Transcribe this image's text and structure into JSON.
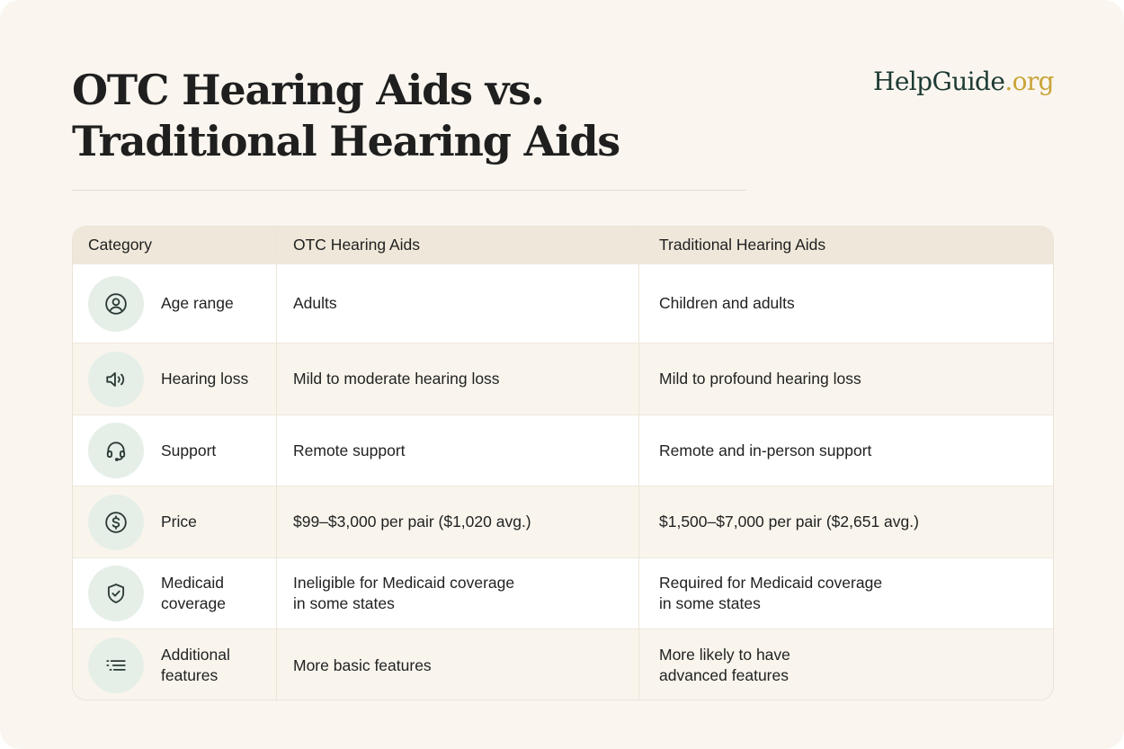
{
  "header": {
    "title_line1": "OTC Hearing Aids vs.",
    "title_line2": "Traditional Hearing Aids",
    "logo_main": "HelpGuide",
    "logo_tld": ".org"
  },
  "colors": {
    "background": "#faf6ef",
    "header_row": "#efe8da",
    "icon_circle": "#e5efe8",
    "icon_stroke": "#2b3a35",
    "logo_main": "#1d3a34",
    "logo_tld": "#c9a43a"
  },
  "table": {
    "columns": [
      "Category",
      "OTC Hearing Aids",
      "Traditional Hearing Aids"
    ],
    "rows": [
      {
        "icon": "person-circle-icon",
        "category": "Age range",
        "otc": "Adults",
        "traditional": "Children and adults"
      },
      {
        "icon": "speaker-icon",
        "category": "Hearing loss",
        "otc": "Mild to moderate hearing loss",
        "traditional": "Mild to profound hearing loss"
      },
      {
        "icon": "headset-icon",
        "category": "Support",
        "otc": "Remote support",
        "traditional": "Remote and in-person support"
      },
      {
        "icon": "dollar-circle-icon",
        "category": "Price",
        "otc": "$99–$3,000 per pair ($1,020 avg.)",
        "traditional": "$1,500–$7,000 per pair ($2,651 avg.)"
      },
      {
        "icon": "shield-check-icon",
        "category": "Medicaid\ncoverage",
        "otc": "Ineligible for Medicaid coverage\nin some states",
        "traditional": "Required for Medicaid coverage\nin some states"
      },
      {
        "icon": "list-icon",
        "category": "Additional\nfeatures",
        "otc": "More basic features",
        "traditional": "More likely to have\nadvanced features"
      }
    ]
  }
}
